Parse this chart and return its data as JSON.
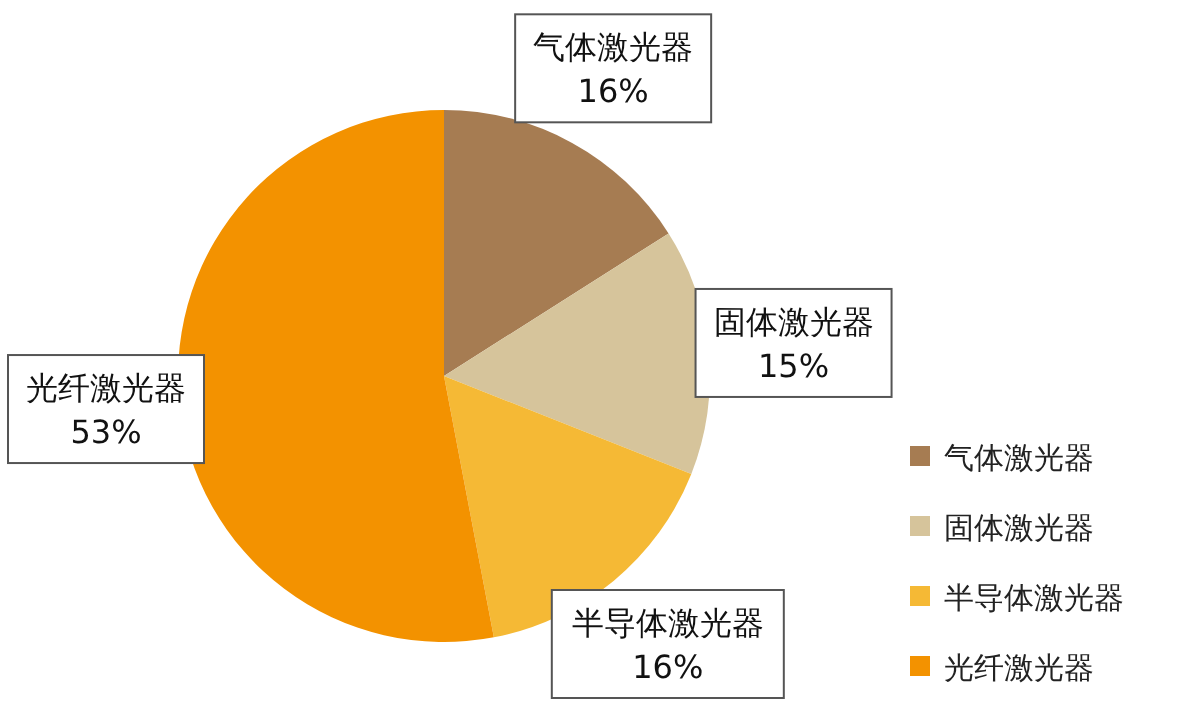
{
  "chart_data": {
    "type": "pie",
    "categories": [
      "气体激光器",
      "固体激光器",
      "半导体激光器",
      "光纤激光器"
    ],
    "values": [
      16,
      15,
      16,
      53
    ],
    "value_labels": [
      "16%",
      "15%",
      "16%",
      "53%"
    ],
    "colors": [
      "#a67c52",
      "#d6c49b",
      "#f5b935",
      "#f39200"
    ],
    "legend": "right"
  }
}
